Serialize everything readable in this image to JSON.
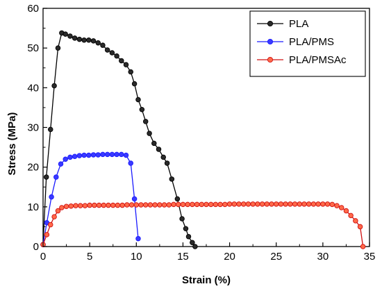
{
  "chart_data": {
    "type": "line",
    "title": "",
    "xlabel": "Strain (%)",
    "ylabel": "Stress (MPa)",
    "xlim": [
      0,
      35
    ],
    "ylim": [
      0,
      60
    ],
    "x_ticks": [
      "0",
      "5",
      "10",
      "15",
      "20",
      "25",
      "30",
      "35"
    ],
    "y_ticks": [
      "0",
      "10",
      "20",
      "30",
      "40",
      "50",
      "60"
    ],
    "grid": false,
    "legend_position": "top-right",
    "series": [
      {
        "name": "PLA",
        "color": "#000000",
        "marker_fill": "#2a2a2a",
        "x": [
          0.0,
          0.35,
          0.8,
          1.2,
          1.6,
          2.0,
          2.4,
          2.9,
          3.4,
          3.9,
          4.4,
          4.9,
          5.4,
          5.9,
          6.4,
          6.9,
          7.4,
          7.9,
          8.4,
          8.9,
          9.4,
          9.8,
          10.2,
          10.6,
          11.0,
          11.4,
          11.9,
          12.4,
          12.9,
          13.3,
          13.8,
          14.4,
          14.9,
          15.3,
          15.6,
          16.0,
          16.3
        ],
        "y": [
          0.5,
          17.5,
          29.5,
          40.5,
          50.0,
          53.8,
          53.5,
          53.0,
          52.5,
          52.2,
          52.0,
          52.0,
          51.8,
          51.3,
          50.7,
          49.5,
          48.8,
          48.0,
          46.8,
          45.8,
          44.0,
          41.0,
          37.0,
          34.5,
          31.5,
          28.5,
          26.0,
          24.5,
          22.5,
          21.0,
          17.0,
          12.0,
          7.0,
          4.5,
          2.5,
          1.0,
          0.0
        ]
      },
      {
        "name": "PLA/PMS",
        "color": "#1a1aff",
        "marker_fill": "#3a3aff",
        "x": [
          0.0,
          0.4,
          0.9,
          1.4,
          1.9,
          2.4,
          2.9,
          3.4,
          3.9,
          4.4,
          4.9,
          5.4,
          5.9,
          6.4,
          6.9,
          7.4,
          7.9,
          8.4,
          8.9,
          9.4,
          9.8,
          10.2
        ],
        "y": [
          0.5,
          6.0,
          12.5,
          17.5,
          20.8,
          22.0,
          22.5,
          22.7,
          22.9,
          23.0,
          23.0,
          23.1,
          23.1,
          23.2,
          23.2,
          23.2,
          23.2,
          23.2,
          23.0,
          21.0,
          12.0,
          2.0
        ]
      },
      {
        "name": "PLA/PMSAc",
        "color": "#d01010",
        "marker_fill": "#ff6a4a",
        "x": [
          0.0,
          0.4,
          0.8,
          1.2,
          1.6,
          2.0,
          2.5,
          3.0,
          3.5,
          4.0,
          4.5,
          5.0,
          5.5,
          6.0,
          6.5,
          7.0,
          7.5,
          8.0,
          8.5,
          9.0,
          9.5,
          10.0,
          10.5,
          11.0,
          11.5,
          12.0,
          12.5,
          13.0,
          13.5,
          14.0,
          14.5,
          15.0,
          15.5,
          16.0,
          16.5,
          17.0,
          17.5,
          18.0,
          18.5,
          19.0,
          19.5,
          20.0,
          20.5,
          21.0,
          21.5,
          22.0,
          22.5,
          23.0,
          23.5,
          24.0,
          24.5,
          25.0,
          25.5,
          26.0,
          26.5,
          27.0,
          27.5,
          28.0,
          28.5,
          29.0,
          29.5,
          30.0,
          30.5,
          31.0,
          31.5,
          32.0,
          32.5,
          33.0,
          33.5,
          34.0,
          34.3
        ],
        "y": [
          0.5,
          3.0,
          5.5,
          7.5,
          9.0,
          9.8,
          10.1,
          10.2,
          10.3,
          10.3,
          10.3,
          10.4,
          10.4,
          10.4,
          10.4,
          10.4,
          10.4,
          10.4,
          10.4,
          10.5,
          10.5,
          10.5,
          10.5,
          10.5,
          10.5,
          10.5,
          10.5,
          10.5,
          10.5,
          10.6,
          10.6,
          10.6,
          10.6,
          10.6,
          10.6,
          10.6,
          10.6,
          10.6,
          10.6,
          10.6,
          10.6,
          10.7,
          10.7,
          10.7,
          10.7,
          10.7,
          10.7,
          10.7,
          10.7,
          10.7,
          10.7,
          10.7,
          10.7,
          10.7,
          10.7,
          10.7,
          10.7,
          10.7,
          10.7,
          10.7,
          10.7,
          10.7,
          10.7,
          10.6,
          10.3,
          9.8,
          9.0,
          7.8,
          6.5,
          5.0,
          0.0
        ]
      }
    ]
  }
}
